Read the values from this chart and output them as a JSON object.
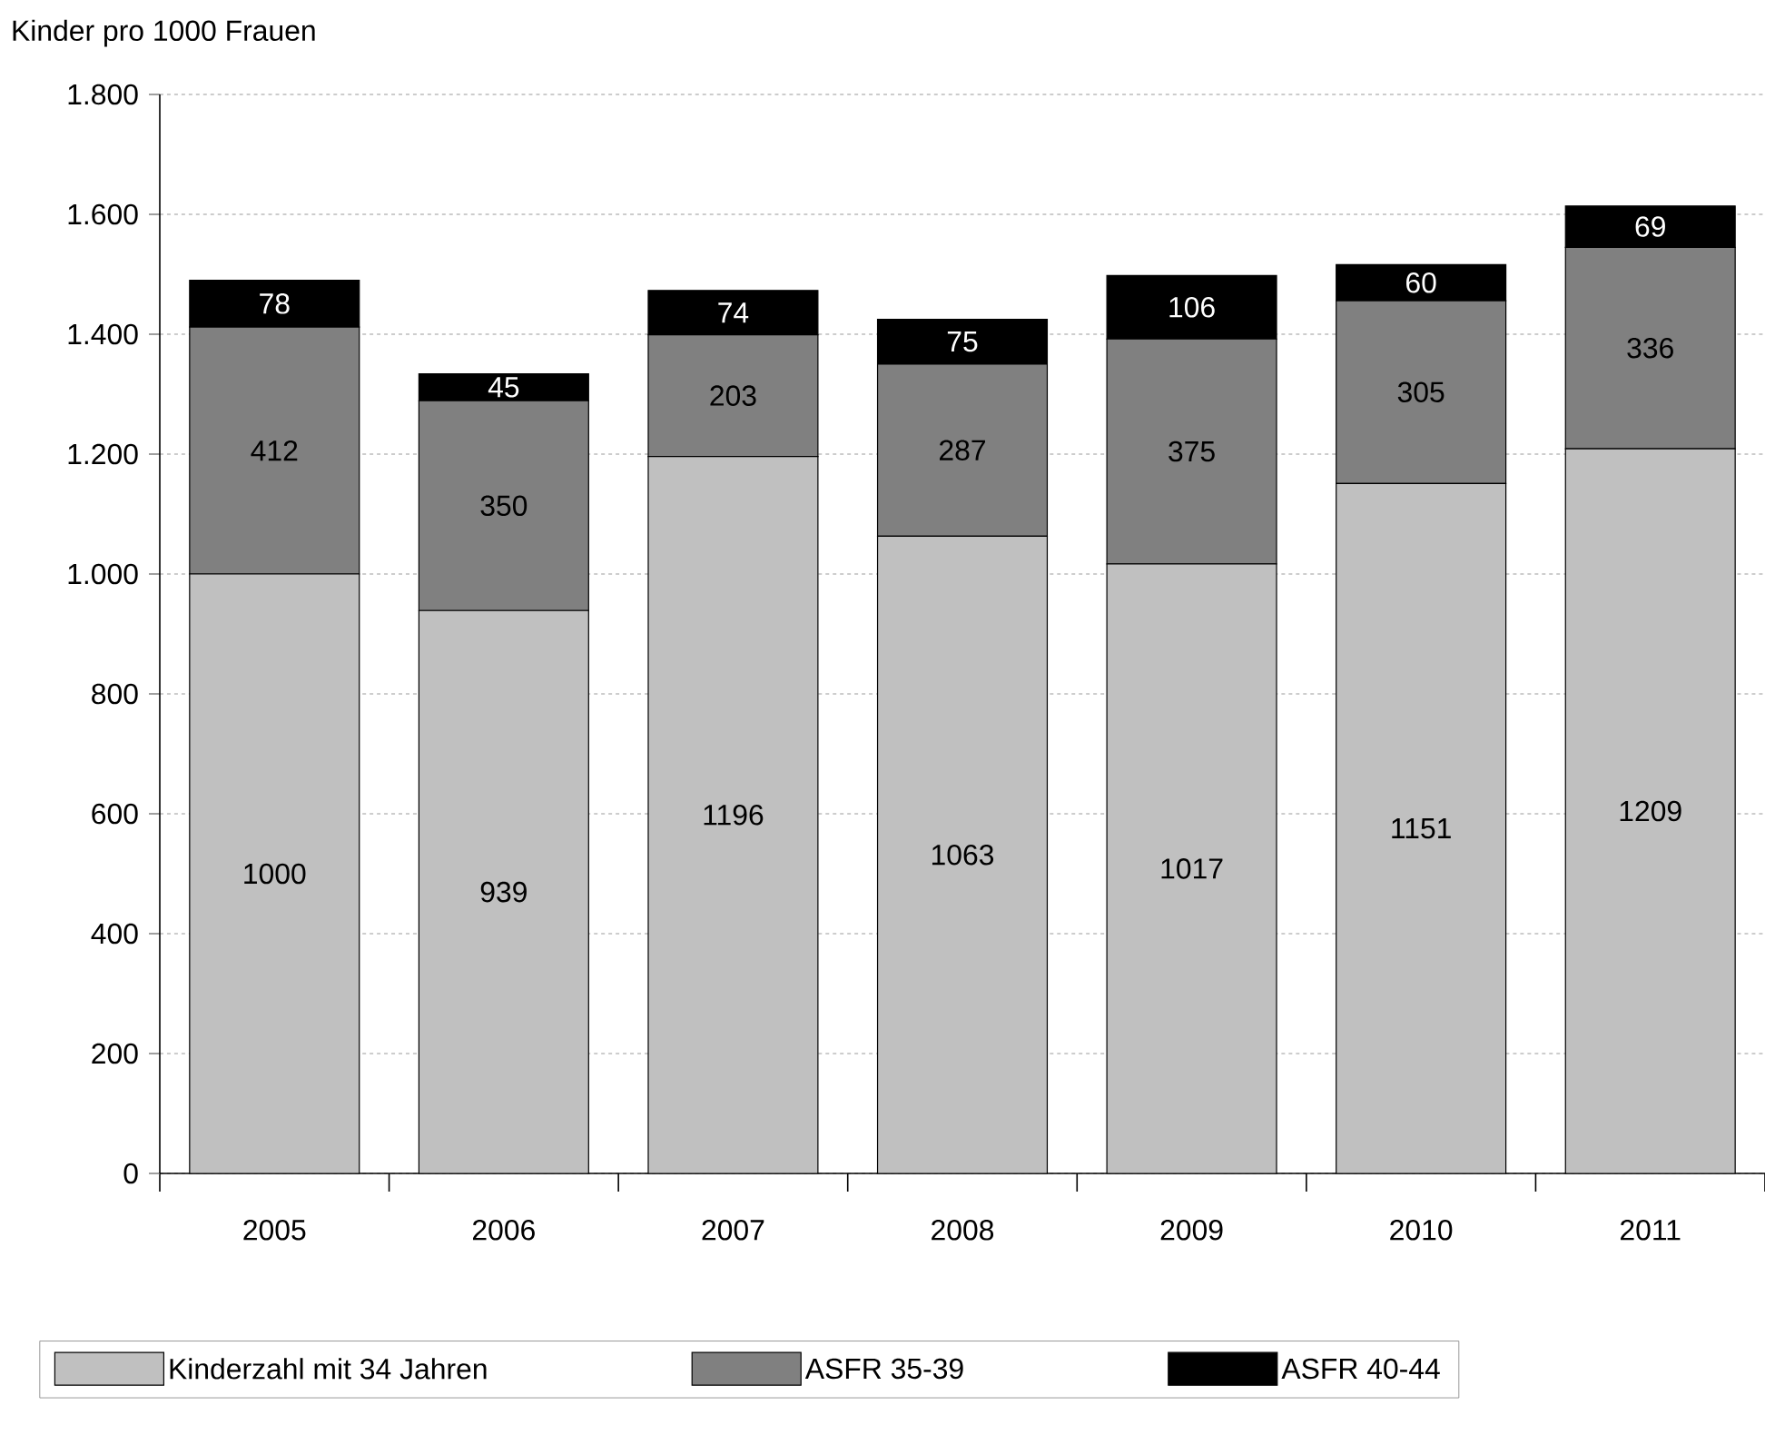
{
  "chart_data": {
    "type": "bar",
    "stacked": true,
    "ylabel": "Kinder pro 1000 Frauen",
    "categories": [
      "2005",
      "2006",
      "2007",
      "2008",
      "2009",
      "2010",
      "2011"
    ],
    "series": [
      {
        "name": "Kinderzahl mit 34 Jahren",
        "color": "#c0c0c0",
        "values": [
          1000,
          939,
          1196,
          1063,
          1017,
          1151,
          1209
        ]
      },
      {
        "name": "ASFR 35-39",
        "color": "#808080",
        "values": [
          412,
          350,
          203,
          287,
          375,
          305,
          336
        ]
      },
      {
        "name": "ASFR 40-44",
        "color": "#000000",
        "values": [
          78,
          45,
          74,
          75,
          106,
          60,
          69
        ]
      }
    ],
    "ylim": [
      0,
      1800
    ],
    "yticks": [
      0,
      200,
      400,
      600,
      800,
      {
        "value": 1000,
        "label": "1.000"
      },
      {
        "value": 1200,
        "label": "1.200"
      },
      {
        "value": 1400,
        "label": "1.400"
      },
      {
        "value": 1600,
        "label": "1.600"
      },
      {
        "value": 1800,
        "label": "1.800"
      }
    ],
    "grid": "y",
    "legend": "bottom",
    "data_labels": true
  }
}
